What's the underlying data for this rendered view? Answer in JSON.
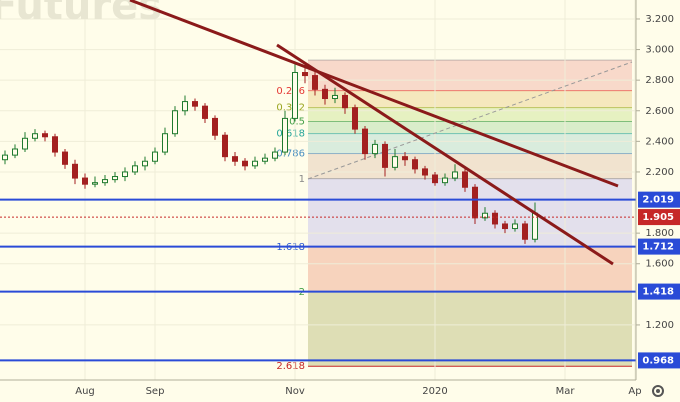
{
  "chart_data": {
    "type": "candlestick",
    "watermark": "Futures",
    "categories": [
      null,
      null,
      null,
      null,
      null,
      null,
      null,
      null,
      "Aug",
      null,
      null,
      null,
      null,
      null,
      null,
      "Sep",
      null,
      null,
      null,
      null,
      null,
      null,
      null,
      null,
      null,
      null,
      null,
      null,
      null,
      "Nov",
      null,
      null,
      null,
      null,
      null,
      null,
      null,
      null,
      null,
      null,
      null,
      null,
      null,
      "2020",
      null,
      null,
      null,
      null,
      null,
      null,
      null,
      null,
      null,
      null,
      null,
      null,
      "Mar",
      null,
      null,
      null,
      null,
      null,
      null,
      "Ap"
    ],
    "open": [
      2.28,
      2.31,
      2.35,
      2.42,
      2.45,
      2.43,
      2.33,
      2.25,
      2.16,
      2.12,
      2.13,
      2.15,
      2.17,
      2.2,
      2.24,
      2.27,
      2.33,
      2.45,
      2.6,
      2.66,
      2.63,
      2.55,
      2.44,
      2.3,
      2.27,
      2.24,
      2.27,
      2.29,
      2.33,
      2.55,
      2.85,
      2.83,
      2.74,
      2.68,
      2.7,
      2.62,
      2.48,
      2.32,
      2.38,
      2.23,
      2.3,
      2.28,
      2.22,
      2.18,
      2.13,
      2.16,
      2.2,
      2.1,
      1.9,
      1.93,
      1.86,
      1.83,
      1.86,
      1.76,
      null,
      null,
      null,
      null,
      null,
      null,
      null,
      null,
      null,
      null
    ],
    "high": [
      2.34,
      2.38,
      2.46,
      2.48,
      2.47,
      2.45,
      2.35,
      2.28,
      2.19,
      2.17,
      2.18,
      2.2,
      2.23,
      2.27,
      2.3,
      2.36,
      2.49,
      2.63,
      2.7,
      2.68,
      2.65,
      2.57,
      2.46,
      2.33,
      2.29,
      2.3,
      2.32,
      2.36,
      2.6,
      2.92,
      2.9,
      2.86,
      2.77,
      2.75,
      2.72,
      2.64,
      2.5,
      2.41,
      2.4,
      2.35,
      2.33,
      2.3,
      2.24,
      2.2,
      2.19,
      2.25,
      2.22,
      2.12,
      1.97,
      1.95,
      1.88,
      1.89,
      1.88,
      2.0,
      null,
      null,
      null,
      null,
      null,
      null,
      null,
      null,
      null,
      null
    ],
    "low": [
      2.25,
      2.29,
      2.33,
      2.4,
      2.4,
      2.3,
      2.22,
      2.12,
      2.09,
      2.1,
      2.11,
      2.13,
      2.14,
      2.18,
      2.21,
      2.25,
      2.31,
      2.43,
      2.57,
      2.6,
      2.52,
      2.41,
      2.27,
      2.24,
      2.21,
      2.22,
      2.25,
      2.27,
      2.31,
      2.53,
      2.78,
      2.7,
      2.64,
      2.65,
      2.58,
      2.45,
      2.28,
      2.29,
      2.17,
      2.21,
      2.24,
      2.19,
      2.15,
      2.11,
      2.11,
      2.14,
      2.07,
      1.86,
      1.88,
      1.83,
      1.8,
      1.81,
      1.73,
      1.74,
      null,
      null,
      null,
      null,
      null,
      null,
      null,
      null,
      null,
      null
    ],
    "close": [
      2.31,
      2.35,
      2.42,
      2.45,
      2.43,
      2.33,
      2.25,
      2.16,
      2.12,
      2.13,
      2.15,
      2.17,
      2.2,
      2.24,
      2.27,
      2.33,
      2.45,
      2.6,
      2.66,
      2.63,
      2.55,
      2.44,
      2.3,
      2.27,
      2.24,
      2.27,
      2.29,
      2.33,
      2.55,
      2.85,
      2.83,
      2.74,
      2.68,
      2.7,
      2.62,
      2.48,
      2.32,
      2.38,
      2.23,
      2.3,
      2.28,
      2.22,
      2.18,
      2.13,
      2.16,
      2.2,
      2.1,
      1.9,
      1.93,
      1.86,
      1.83,
      1.86,
      1.76,
      1.93,
      null,
      null,
      null,
      null,
      null,
      null,
      null,
      null,
      null,
      null
    ],
    "up_color": "#1f7a2e",
    "down_color": "#a32020",
    "ylim": [
      0.84,
      3.324
    ],
    "yticks": [
      {
        "value": 1.2,
        "label": "1.200"
      },
      {
        "value": 1.6,
        "label": "1.600"
      },
      {
        "value": 1.8,
        "label": "1.800"
      },
      {
        "value": 2.2,
        "label": "2.200"
      },
      {
        "value": 2.4,
        "label": "2.400"
      },
      {
        "value": 2.6,
        "label": "2.600"
      },
      {
        "value": 2.8,
        "label": "2.800"
      },
      {
        "value": 3.0,
        "label": "3.000"
      },
      {
        "value": 3.2,
        "label": "3.200"
      }
    ],
    "grid": true,
    "fib_levels": [
      {
        "value": 2.93,
        "color": "#9e9e9e"
      },
      {
        "label": "0.236",
        "value": 2.73,
        "color": "#e53935",
        "fill": "#f6cfc2"
      },
      {
        "label": "0.382",
        "value": 2.62,
        "color": "#9aa51f",
        "fill": "#f3e2b2"
      },
      {
        "label": "0.5",
        "value": 2.53,
        "color": "#43a047",
        "fill": "#e0eeb6"
      },
      {
        "label": "0.618",
        "value": 2.45,
        "color": "#26a69a",
        "fill": "#cfe8c2"
      },
      {
        "label": "0.786",
        "value": 2.32,
        "color": "#4a90c2",
        "fill": "#cfe7da"
      },
      {
        "label": "1",
        "value": 2.155,
        "color": "#888888",
        "fill": "#eddcc8"
      },
      {
        "label": "1.618",
        "value": 1.71,
        "color": "#2f5bd0",
        "fill": "#dcd8ec"
      },
      {
        "label": "2",
        "value": 1.415,
        "color": "#43a047",
        "fill": "#f5c8b2"
      },
      {
        "label": "2.618",
        "value": 0.93,
        "color": "#c62828",
        "fill": "#d6d6a8"
      }
    ],
    "price_lines": [
      {
        "value": 2.019,
        "color": "#2a4bd7"
      },
      {
        "value": 1.905,
        "color": "#c62828"
      },
      {
        "value": 1.712,
        "color": "#2a4bd7"
      },
      {
        "value": 1.418,
        "color": "#2a4bd7"
      },
      {
        "value": 0.968,
        "color": "#2a4bd7"
      }
    ]
  }
}
